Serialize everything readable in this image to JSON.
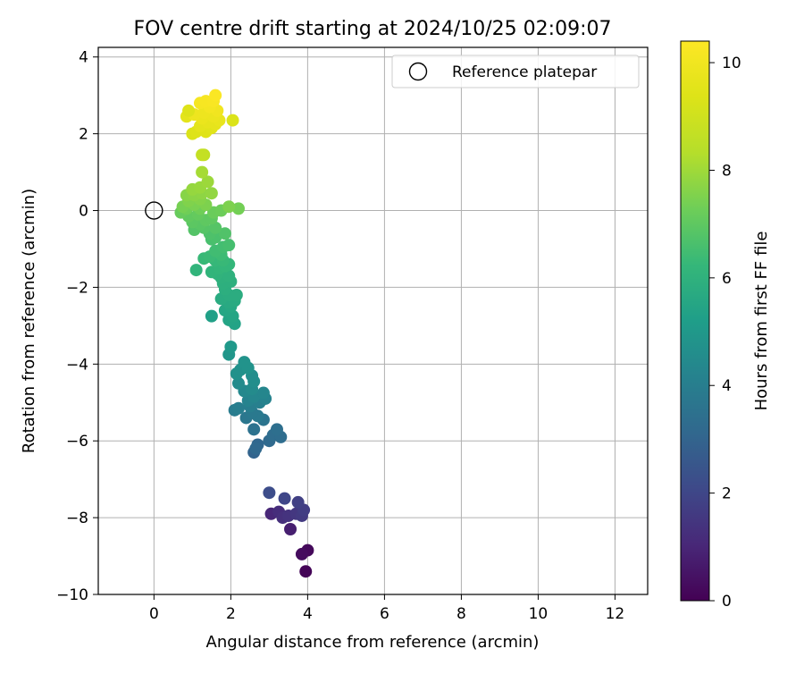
{
  "chart_data": {
    "type": "scatter",
    "title": "FOV centre drift starting at 2024/10/25 02:09:07",
    "xlabel": "Angular distance from reference (arcmin)",
    "ylabel": "Rotation from reference (arcmin)",
    "xlim": [
      -1.45,
      12.85
    ],
    "ylim": [
      -10.0,
      4.25
    ],
    "xticks": [
      0,
      2,
      4,
      6,
      8,
      10,
      12
    ],
    "yticks": [
      -10,
      -8,
      -6,
      -4,
      -2,
      0,
      2,
      4
    ],
    "xtick_labels": [
      "0",
      "2",
      "4",
      "6",
      "8",
      "10",
      "12"
    ],
    "ytick_labels": [
      "−10",
      "−8",
      "−6",
      "−4",
      "−2",
      "0",
      "2",
      "4"
    ],
    "grid": true,
    "legend": {
      "position": "top-right",
      "entries": [
        {
          "label": "Reference platepar",
          "marker": "open-circle"
        }
      ]
    },
    "reference_point": {
      "x": 0,
      "y": 0
    },
    "colorbar": {
      "label": "Hours from first FF file",
      "range": [
        0,
        10.4
      ],
      "ticks": [
        0,
        2,
        4,
        6,
        8,
        10
      ],
      "tick_labels": [
        "0",
        "2",
        "4",
        "6",
        "8",
        "10"
      ],
      "colormap": "viridis"
    },
    "points": [
      {
        "x": 3.95,
        "y": -9.4,
        "t": 0.1
      },
      {
        "x": 4.0,
        "y": -8.85,
        "t": 0.2
      },
      {
        "x": 3.85,
        "y": -8.95,
        "t": 0.3
      },
      {
        "x": 3.55,
        "y": -8.3,
        "t": 0.8
      },
      {
        "x": 3.05,
        "y": -7.9,
        "t": 1.0
      },
      {
        "x": 3.25,
        "y": -7.85,
        "t": 1.2
      },
      {
        "x": 3.35,
        "y": -8.0,
        "t": 1.3
      },
      {
        "x": 3.5,
        "y": -7.95,
        "t": 1.4
      },
      {
        "x": 3.7,
        "y": -7.9,
        "t": 1.5
      },
      {
        "x": 3.85,
        "y": -7.95,
        "t": 1.6
      },
      {
        "x": 3.9,
        "y": -7.8,
        "t": 1.7
      },
      {
        "x": 3.75,
        "y": -7.6,
        "t": 1.8
      },
      {
        "x": 3.4,
        "y": -7.5,
        "t": 2.0
      },
      {
        "x": 3.0,
        "y": -7.35,
        "t": 2.2
      },
      {
        "x": 2.6,
        "y": -6.3,
        "t": 3.0
      },
      {
        "x": 2.7,
        "y": -6.1,
        "t": 3.1
      },
      {
        "x": 2.65,
        "y": -6.2,
        "t": 3.15
      },
      {
        "x": 3.0,
        "y": -6.0,
        "t": 3.2
      },
      {
        "x": 3.1,
        "y": -5.85,
        "t": 3.3
      },
      {
        "x": 3.3,
        "y": -5.9,
        "t": 3.3
      },
      {
        "x": 3.2,
        "y": -5.7,
        "t": 3.4
      },
      {
        "x": 2.6,
        "y": -5.7,
        "t": 3.5
      },
      {
        "x": 2.85,
        "y": -5.45,
        "t": 3.6
      },
      {
        "x": 2.4,
        "y": -5.4,
        "t": 3.7
      },
      {
        "x": 2.7,
        "y": -5.35,
        "t": 3.8
      },
      {
        "x": 2.55,
        "y": -5.25,
        "t": 3.8
      },
      {
        "x": 2.1,
        "y": -5.2,
        "t": 3.9
      },
      {
        "x": 2.2,
        "y": -5.15,
        "t": 4.0
      },
      {
        "x": 2.5,
        "y": -5.1,
        "t": 4.0
      },
      {
        "x": 2.75,
        "y": -5.0,
        "t": 4.1
      },
      {
        "x": 2.45,
        "y": -4.95,
        "t": 4.2
      },
      {
        "x": 2.9,
        "y": -4.9,
        "t": 4.2
      },
      {
        "x": 2.6,
        "y": -4.85,
        "t": 4.3
      },
      {
        "x": 2.85,
        "y": -4.75,
        "t": 4.3
      },
      {
        "x": 2.35,
        "y": -4.7,
        "t": 4.4
      },
      {
        "x": 2.55,
        "y": -4.65,
        "t": 4.5
      },
      {
        "x": 2.2,
        "y": -4.5,
        "t": 4.5
      },
      {
        "x": 2.6,
        "y": -4.45,
        "t": 4.6
      },
      {
        "x": 2.55,
        "y": -4.3,
        "t": 4.6
      },
      {
        "x": 2.15,
        "y": -4.25,
        "t": 4.7
      },
      {
        "x": 2.25,
        "y": -4.15,
        "t": 4.7
      },
      {
        "x": 2.45,
        "y": -4.1,
        "t": 4.8
      },
      {
        "x": 2.35,
        "y": -3.95,
        "t": 4.8
      },
      {
        "x": 1.95,
        "y": -3.75,
        "t": 4.9
      },
      {
        "x": 2.0,
        "y": -3.55,
        "t": 5.0
      },
      {
        "x": 1.5,
        "y": -2.75,
        "t": 5.3
      },
      {
        "x": 2.1,
        "y": -2.95,
        "t": 5.4
      },
      {
        "x": 1.95,
        "y": -2.85,
        "t": 5.45
      },
      {
        "x": 2.05,
        "y": -2.75,
        "t": 5.5
      },
      {
        "x": 1.85,
        "y": -2.6,
        "t": 5.55
      },
      {
        "x": 2.0,
        "y": -2.5,
        "t": 5.6
      },
      {
        "x": 1.95,
        "y": -2.4,
        "t": 5.65
      },
      {
        "x": 2.1,
        "y": -2.35,
        "t": 5.7
      },
      {
        "x": 1.75,
        "y": -2.3,
        "t": 5.75
      },
      {
        "x": 1.95,
        "y": -2.2,
        "t": 5.8
      },
      {
        "x": 2.15,
        "y": -2.2,
        "t": 5.8
      },
      {
        "x": 1.85,
        "y": -2.05,
        "t": 5.85
      },
      {
        "x": 1.8,
        "y": -1.9,
        "t": 5.9
      },
      {
        "x": 2.0,
        "y": -1.85,
        "t": 5.9
      },
      {
        "x": 1.75,
        "y": -1.75,
        "t": 5.95
      },
      {
        "x": 1.95,
        "y": -1.7,
        "t": 6.0
      },
      {
        "x": 1.65,
        "y": -1.65,
        "t": 6.05
      },
      {
        "x": 1.5,
        "y": -1.6,
        "t": 6.1
      },
      {
        "x": 1.1,
        "y": -1.55,
        "t": 6.1
      },
      {
        "x": 1.7,
        "y": -1.5,
        "t": 6.15
      },
      {
        "x": 1.85,
        "y": -1.45,
        "t": 6.2
      },
      {
        "x": 1.95,
        "y": -1.4,
        "t": 6.2
      },
      {
        "x": 1.6,
        "y": -1.3,
        "t": 6.25
      },
      {
        "x": 1.8,
        "y": -1.3,
        "t": 6.3
      },
      {
        "x": 1.3,
        "y": -1.25,
        "t": 6.3
      },
      {
        "x": 1.45,
        "y": -1.2,
        "t": 6.35
      },
      {
        "x": 1.75,
        "y": -1.15,
        "t": 6.4
      },
      {
        "x": 1.6,
        "y": -1.05,
        "t": 6.45
      },
      {
        "x": 1.8,
        "y": -0.95,
        "t": 6.5
      },
      {
        "x": 1.95,
        "y": -0.9,
        "t": 6.55
      },
      {
        "x": 1.5,
        "y": -0.75,
        "t": 6.6
      },
      {
        "x": 1.6,
        "y": -0.7,
        "t": 6.65
      },
      {
        "x": 1.45,
        "y": -0.6,
        "t": 6.7
      },
      {
        "x": 1.85,
        "y": -0.6,
        "t": 6.75
      },
      {
        "x": 1.05,
        "y": -0.5,
        "t": 6.8
      },
      {
        "x": 1.3,
        "y": -0.45,
        "t": 6.85
      },
      {
        "x": 1.6,
        "y": -0.45,
        "t": 6.85
      },
      {
        "x": 1.2,
        "y": -0.35,
        "t": 6.9
      },
      {
        "x": 1.0,
        "y": -0.3,
        "t": 6.95
      },
      {
        "x": 1.35,
        "y": -0.25,
        "t": 7.0
      },
      {
        "x": 1.5,
        "y": -0.2,
        "t": 7.0
      },
      {
        "x": 0.9,
        "y": -0.15,
        "t": 7.05
      },
      {
        "x": 1.15,
        "y": -0.1,
        "t": 7.1
      },
      {
        "x": 0.7,
        "y": -0.05,
        "t": 7.15
      },
      {
        "x": 1.55,
        "y": -0.05,
        "t": 7.2
      },
      {
        "x": 1.75,
        "y": 0.0,
        "t": 7.25
      },
      {
        "x": 0.85,
        "y": 0.05,
        "t": 7.3
      },
      {
        "x": 1.2,
        "y": 0.05,
        "t": 7.3
      },
      {
        "x": 2.2,
        "y": 0.05,
        "t": 7.35
      },
      {
        "x": 0.75,
        "y": 0.1,
        "t": 7.4
      },
      {
        "x": 1.05,
        "y": 0.15,
        "t": 7.45
      },
      {
        "x": 1.35,
        "y": 0.15,
        "t": 7.5
      },
      {
        "x": 1.95,
        "y": 0.1,
        "t": 7.5
      },
      {
        "x": 0.9,
        "y": 0.25,
        "t": 7.55
      },
      {
        "x": 1.2,
        "y": 0.3,
        "t": 7.6
      },
      {
        "x": 0.85,
        "y": 0.4,
        "t": 7.65
      },
      {
        "x": 1.05,
        "y": 0.4,
        "t": 7.7
      },
      {
        "x": 1.25,
        "y": 0.45,
        "t": 7.75
      },
      {
        "x": 1.5,
        "y": 0.45,
        "t": 7.8
      },
      {
        "x": 1.0,
        "y": 0.55,
        "t": 7.85
      },
      {
        "x": 1.2,
        "y": 0.6,
        "t": 7.9
      },
      {
        "x": 1.4,
        "y": 0.75,
        "t": 7.95
      },
      {
        "x": 1.25,
        "y": 1.0,
        "t": 8.1
      },
      {
        "x": 1.3,
        "y": 1.45,
        "t": 8.6
      },
      {
        "x": 1.25,
        "y": 1.45,
        "t": 8.7
      },
      {
        "x": 1.0,
        "y": 2.0,
        "t": 9.3
      },
      {
        "x": 1.1,
        "y": 2.05,
        "t": 9.4
      },
      {
        "x": 1.35,
        "y": 2.05,
        "t": 9.45
      },
      {
        "x": 1.5,
        "y": 2.15,
        "t": 9.5
      },
      {
        "x": 1.2,
        "y": 2.2,
        "t": 9.6
      },
      {
        "x": 1.6,
        "y": 2.25,
        "t": 9.65
      },
      {
        "x": 1.4,
        "y": 2.3,
        "t": 9.7
      },
      {
        "x": 1.7,
        "y": 2.35,
        "t": 9.75
      },
      {
        "x": 2.05,
        "y": 2.35,
        "t": 9.3
      },
      {
        "x": 1.25,
        "y": 2.4,
        "t": 9.8
      },
      {
        "x": 0.85,
        "y": 2.45,
        "t": 9.6
      },
      {
        "x": 1.55,
        "y": 2.45,
        "t": 9.85
      },
      {
        "x": 1.05,
        "y": 2.5,
        "t": 9.9
      },
      {
        "x": 1.3,
        "y": 2.55,
        "t": 9.9
      },
      {
        "x": 0.9,
        "y": 2.6,
        "t": 9.4
      },
      {
        "x": 1.65,
        "y": 2.6,
        "t": 10.0
      },
      {
        "x": 1.45,
        "y": 2.7,
        "t": 10.1
      },
      {
        "x": 1.2,
        "y": 2.8,
        "t": 10.15
      },
      {
        "x": 1.35,
        "y": 2.85,
        "t": 10.2
      },
      {
        "x": 1.55,
        "y": 2.85,
        "t": 10.25
      },
      {
        "x": 1.6,
        "y": 3.0,
        "t": 10.3
      }
    ]
  }
}
